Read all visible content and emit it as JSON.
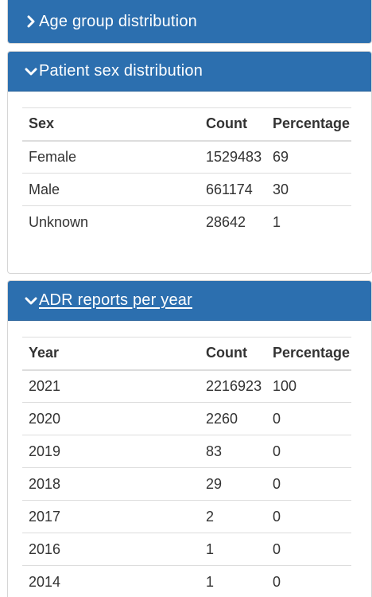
{
  "age_panel": {
    "title": "Age group distribution",
    "icon": "chevron-right-icon"
  },
  "sex_panel": {
    "title": "Patient sex distribution",
    "icon": "chevron-down-icon",
    "headers": [
      "Sex",
      "Count",
      "Percentage"
    ],
    "rows": [
      [
        "Female",
        "1529483",
        "69"
      ],
      [
        "Male",
        "661174",
        "30"
      ],
      [
        "Unknown",
        "28642",
        "1"
      ]
    ]
  },
  "adr_panel": {
    "title": "ADR reports per year",
    "icon": "chevron-down-icon",
    "headers": [
      "Year",
      "Count",
      "Percentage"
    ],
    "rows": [
      [
        "2021",
        "2216923",
        "100"
      ],
      [
        "2020",
        "2260",
        "0"
      ],
      [
        "2019",
        "83",
        "0"
      ],
      [
        "2018",
        "29",
        "0"
      ],
      [
        "2017",
        "2",
        "0"
      ],
      [
        "2016",
        "1",
        "0"
      ],
      [
        "2014",
        "1",
        "0"
      ]
    ]
  },
  "colors": {
    "panel_header": "#2c6faf",
    "header_text": "#ffffff",
    "body_text": "#333333",
    "rule": "#dddddd"
  }
}
